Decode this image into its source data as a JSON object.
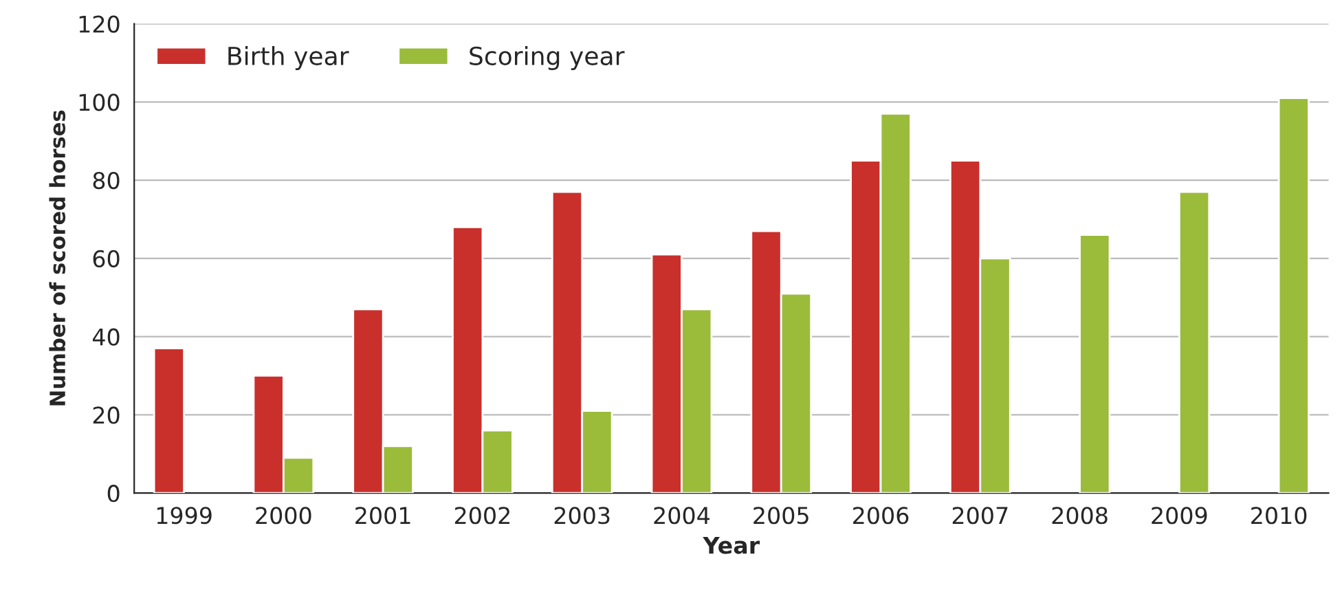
{
  "chart_data": {
    "type": "bar",
    "xlabel": "Year",
    "ylabel": "Number of scored horses",
    "categories": [
      "1999",
      "2000",
      "2001",
      "2002",
      "2003",
      "2004",
      "2005",
      "2006",
      "2007",
      "2008",
      "2009",
      "2010"
    ],
    "series": [
      {
        "name": "Birth year",
        "color": "#c9302c",
        "values": [
          37,
          30,
          47,
          68,
          77,
          61,
          67,
          85,
          85,
          null,
          null,
          null
        ]
      },
      {
        "name": "Scoring year",
        "color": "#9bbb3b",
        "values": [
          null,
          9,
          12,
          16,
          21,
          47,
          51,
          97,
          60,
          66,
          77,
          101
        ]
      }
    ],
    "ylim": [
      0,
      120
    ],
    "yticks": [
      0,
      20,
      40,
      60,
      80,
      100,
      120
    ],
    "grid": "y",
    "legend": "top left"
  }
}
